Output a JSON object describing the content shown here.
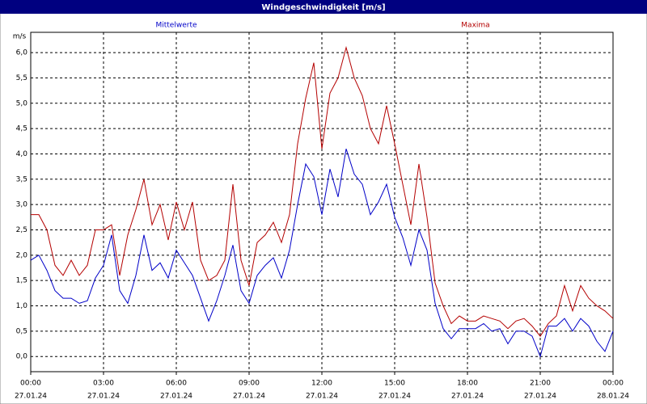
{
  "chart_data": {
    "type": "line",
    "title": "Windgeschwindigkeit [m/s]",
    "y_label": "m/s",
    "x": [
      0,
      20,
      40,
      60,
      80,
      100,
      120,
      140,
      160,
      180,
      200,
      220,
      240,
      260,
      280,
      300,
      320,
      340,
      360,
      380,
      400,
      420,
      440,
      460,
      480,
      500,
      520,
      540,
      560,
      580,
      600,
      620,
      640,
      660,
      680,
      700,
      720,
      740,
      760,
      780,
      800,
      820,
      840,
      860,
      880,
      900,
      920,
      940,
      960,
      980,
      1000,
      1020,
      1040,
      1060,
      1080,
      1100,
      1120,
      1140,
      1160,
      1180,
      1200,
      1220,
      1240,
      1260,
      1280,
      1300,
      1320,
      1340,
      1360,
      1380,
      1400,
      1420,
      1440
    ],
    "xlim": [
      0,
      1440
    ],
    "xticks": [
      {
        "value": 0,
        "label": "00:00"
      },
      {
        "value": 180,
        "label": "03:00"
      },
      {
        "value": 360,
        "label": "06:00"
      },
      {
        "value": 540,
        "label": "09:00"
      },
      {
        "value": 720,
        "label": "12:00"
      },
      {
        "value": 900,
        "label": "15:00"
      },
      {
        "value": 1080,
        "label": "18:00"
      },
      {
        "value": 1260,
        "label": "21:00"
      },
      {
        "value": 1440,
        "label": "00:00"
      }
    ],
    "xtick_dates": [
      "27.01.24",
      "27.01.24",
      "27.01.24",
      "27.01.24",
      "27.01.24",
      "27.01.24",
      "27.01.24",
      "27.01.24",
      "28.01.24"
    ],
    "ylim": [
      -0.3,
      6.4
    ],
    "yticks": [
      {
        "value": 0,
        "label": "0,0"
      },
      {
        "value": 0.5,
        "label": "0,5"
      },
      {
        "value": 1,
        "label": "1,0"
      },
      {
        "value": 1.5,
        "label": "1,5"
      },
      {
        "value": 2,
        "label": "2,0"
      },
      {
        "value": 2.5,
        "label": "2,5"
      },
      {
        "value": 3,
        "label": "3,0"
      },
      {
        "value": 3.5,
        "label": "3,5"
      },
      {
        "value": 4,
        "label": "4,0"
      },
      {
        "value": 4.5,
        "label": "4,5"
      },
      {
        "value": 5,
        "label": "5,0"
      },
      {
        "value": 5.5,
        "label": "5,5"
      },
      {
        "value": 6,
        "label": "6,0"
      }
    ],
    "grid": true,
    "series": [
      {
        "name": "Mittelwerte",
        "color": "#0000c8",
        "values": [
          1.9,
          2.0,
          1.7,
          1.3,
          1.15,
          1.15,
          1.05,
          1.1,
          1.55,
          1.8,
          2.4,
          1.3,
          1.05,
          1.6,
          2.4,
          1.7,
          1.85,
          1.55,
          2.1,
          1.85,
          1.6,
          1.15,
          0.7,
          1.1,
          1.6,
          2.2,
          1.3,
          1.05,
          1.6,
          1.8,
          1.95,
          1.55,
          2.1,
          3.0,
          3.8,
          3.55,
          2.8,
          3.7,
          3.15,
          4.1,
          3.6,
          3.4,
          2.8,
          3.05,
          3.4,
          2.75,
          2.35,
          1.8,
          2.5,
          2.1,
          1.05,
          0.55,
          0.35,
          0.55,
          0.55,
          0.55,
          0.65,
          0.5,
          0.55,
          0.25,
          0.5,
          0.5,
          0.4,
          0.0,
          0.6,
          0.6,
          0.75,
          0.5,
          0.75,
          0.6,
          0.3,
          0.1,
          0.5
        ]
      },
      {
        "name": "Maxima",
        "color": "#b40000",
        "values": [
          2.8,
          2.8,
          2.5,
          1.8,
          1.6,
          1.9,
          1.6,
          1.8,
          2.5,
          2.5,
          2.6,
          1.6,
          2.4,
          2.9,
          3.5,
          2.6,
          3.0,
          2.3,
          3.05,
          2.5,
          3.05,
          1.9,
          1.5,
          1.6,
          1.9,
          3.4,
          1.9,
          1.4,
          2.25,
          2.4,
          2.65,
          2.25,
          2.8,
          4.2,
          5.1,
          5.8,
          4.1,
          5.2,
          5.5,
          6.1,
          5.5,
          5.15,
          4.5,
          4.2,
          4.95,
          4.2,
          3.4,
          2.6,
          3.8,
          2.75,
          1.45,
          1.0,
          0.65,
          0.8,
          0.7,
          0.7,
          0.8,
          0.75,
          0.7,
          0.55,
          0.7,
          0.75,
          0.6,
          0.4,
          0.65,
          0.8,
          1.4,
          0.9,
          1.4,
          1.15,
          1.0,
          0.9,
          0.75
        ]
      }
    ]
  }
}
